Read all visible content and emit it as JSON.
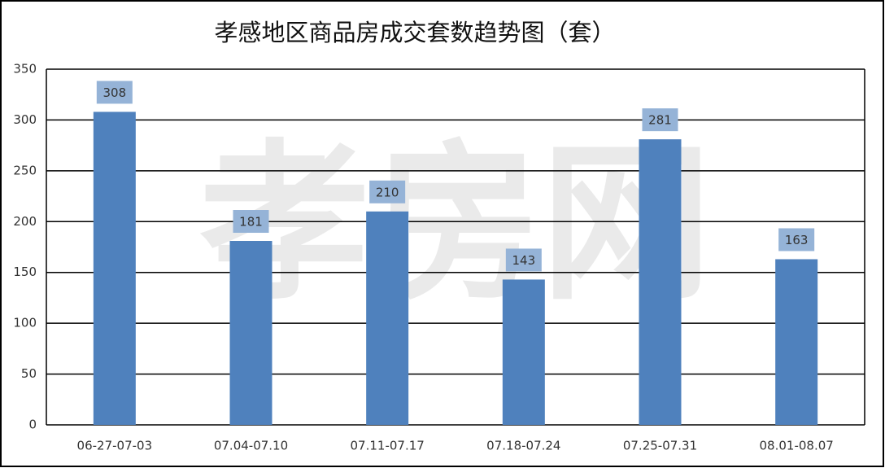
{
  "chart_data": {
    "type": "bar",
    "title": "孝感地区商品房成交套数趋势图（套）",
    "watermark": "孝房网",
    "categories": [
      "06-27-07-03",
      "07.04-07.10",
      "07.11-07.17",
      "07.18-07.24",
      "07.25-07.31",
      "08.01-08.07"
    ],
    "values": [
      308,
      181,
      210,
      143,
      281,
      163
    ],
    "color": "#4f81bd",
    "label_color": "#95b3d7",
    "ylim": [
      0,
      350
    ],
    "yticks": [
      0,
      50,
      100,
      150,
      200,
      250,
      300,
      350
    ],
    "grid": true
  }
}
